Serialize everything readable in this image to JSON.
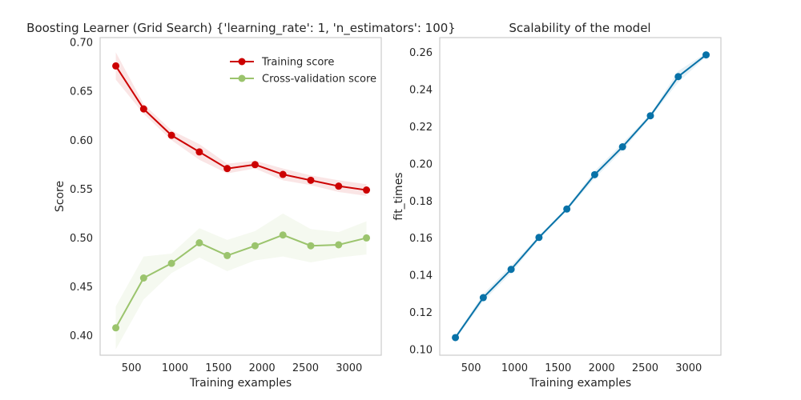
{
  "chart_data": [
    {
      "type": "line",
      "title": "Boosting Learner (Grid Search) {'learning_rate': 1, 'n_estimators': 100}",
      "xlabel": "Training examples",
      "ylabel": "Score",
      "xlim": [
        140,
        3370
      ],
      "ylim": [
        0.38,
        0.705
      ],
      "xticks": [
        500,
        1000,
        1500,
        2000,
        2500,
        3000
      ],
      "yticks": [
        0.4,
        0.45,
        0.5,
        0.55,
        0.6,
        0.65,
        0.7
      ],
      "ytick_labels": [
        "0.40",
        "0.45",
        "0.50",
        "0.55",
        "0.60",
        "0.65",
        "0.70"
      ],
      "grid": false,
      "legend": "top-right",
      "x": [
        320,
        640,
        960,
        1280,
        1600,
        1920,
        2240,
        2560,
        2880,
        3200
      ],
      "series": [
        {
          "name": "Training score",
          "color": "#cc0000",
          "values": [
            0.676,
            0.632,
            0.605,
            0.588,
            0.571,
            0.575,
            0.565,
            0.559,
            0.553,
            0.549
          ],
          "std": [
            0.014,
            0.005,
            0.005,
            0.008,
            0.005,
            0.004,
            0.006,
            0.005,
            0.006,
            0.006
          ]
        },
        {
          "name": "Cross-validation score",
          "color": "#9bc46d",
          "values": [
            0.408,
            0.459,
            0.474,
            0.495,
            0.482,
            0.492,
            0.503,
            0.492,
            0.493,
            0.5
          ],
          "std": [
            0.022,
            0.022,
            0.01,
            0.015,
            0.016,
            0.015,
            0.022,
            0.017,
            0.013,
            0.017
          ]
        }
      ]
    },
    {
      "type": "line",
      "title": "Scalability of the model",
      "xlabel": "Training examples",
      "ylabel": "fit_times",
      "xlim": [
        140,
        3370
      ],
      "ylim": [
        0.097,
        0.268
      ],
      "xticks": [
        500,
        1000,
        1500,
        2000,
        2500,
        3000
      ],
      "yticks": [
        0.1,
        0.12,
        0.14,
        0.16,
        0.18,
        0.2,
        0.22,
        0.24,
        0.26
      ],
      "ytick_labels": [
        "0.10",
        "0.12",
        "0.14",
        "0.16",
        "0.18",
        "0.20",
        "0.22",
        "0.24",
        "0.26"
      ],
      "grid": false,
      "x": [
        320,
        640,
        960,
        1280,
        1600,
        1920,
        2240,
        2560,
        2880,
        3200
      ],
      "series": [
        {
          "name": "",
          "color": "#0872a8",
          "values": [
            0.1065,
            0.128,
            0.1432,
            0.1604,
            0.1757,
            0.1942,
            0.2092,
            0.2259,
            0.247,
            0.2587
          ],
          "std": [
            0.001,
            0.002,
            0.002,
            0.001,
            0.001,
            0.002,
            0.002,
            0.001,
            0.003,
            0.001
          ]
        }
      ]
    }
  ]
}
